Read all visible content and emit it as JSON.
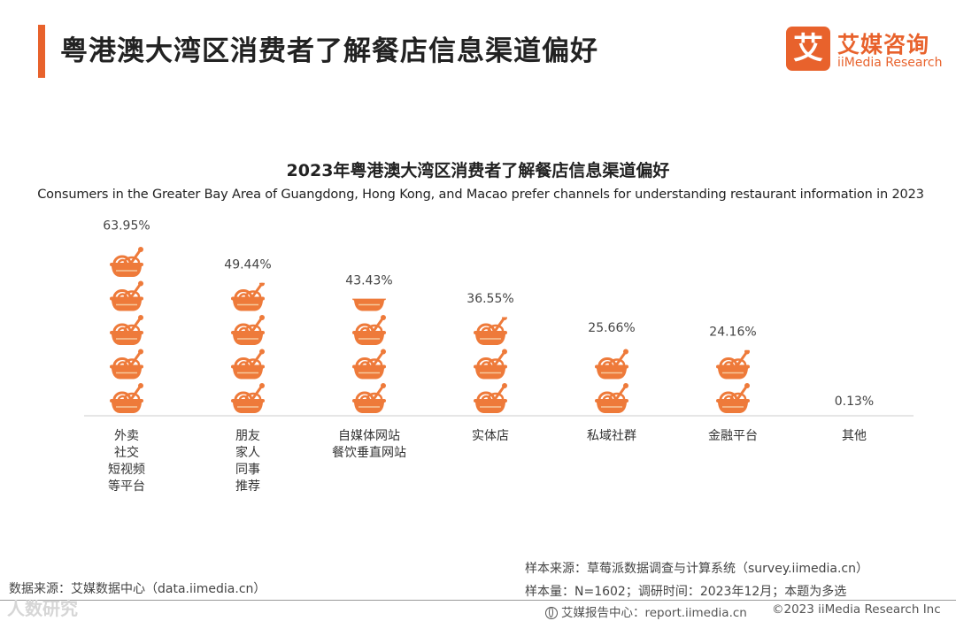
{
  "header": {
    "title": "粤港澳大湾区消费者了解餐店信息渠道偏好",
    "logo_badge": "艾",
    "logo_cn": "艾媒咨询",
    "logo_en": "iiMedia Research"
  },
  "colors": {
    "accent": "#e8622c",
    "bowl": "#ee7a3a",
    "noodle": "#f6c89c",
    "axis": "#cccccc"
  },
  "icons": {
    "unit": "noodle-bowl-icon",
    "footer": "globe-icon"
  },
  "chart_data": {
    "type": "bar",
    "title": "2023年粤港澳大湾区消费者了解餐店信息渠道偏好",
    "subtitle": "Consumers in the Greater Bay Area of Guangdong, Hong Kong, and Macao prefer channels for understanding restaurant information in 2023",
    "categories": [
      [
        "外卖",
        "社交",
        "短视频",
        "等平台"
      ],
      [
        "朋友",
        "家人",
        "同事",
        "推荐"
      ],
      [
        "自媒体网站",
        "餐饮垂直网站"
      ],
      [
        "实体店"
      ],
      [
        "私域社群"
      ],
      [
        "金融平台"
      ],
      [
        "其他"
      ]
    ],
    "values": [
      63.95,
      49.44,
      43.43,
      36.55,
      25.66,
      24.16,
      0.13
    ],
    "value_labels": [
      "63.95%",
      "49.44%",
      "43.43%",
      "36.55%",
      "25.66%",
      "24.16%",
      "0.13%"
    ],
    "unit": "%",
    "ylim": [
      0,
      64
    ],
    "grid": false,
    "legend": "none"
  },
  "notes": {
    "data_source": "数据来源：艾媒数据中心（data.iimedia.cn）",
    "sample_source": "样本来源：草莓派数据调查与计算系统（survey.iimedia.cn）",
    "sample_size": "样本量：N=1602；调研时间：2023年12月；本题为多选"
  },
  "footer": {
    "report_center": "艾媒报告中心：report.iimedia.cn",
    "copyright": "©2023  iiMedia Research Inc"
  },
  "watermark": "人数研究"
}
